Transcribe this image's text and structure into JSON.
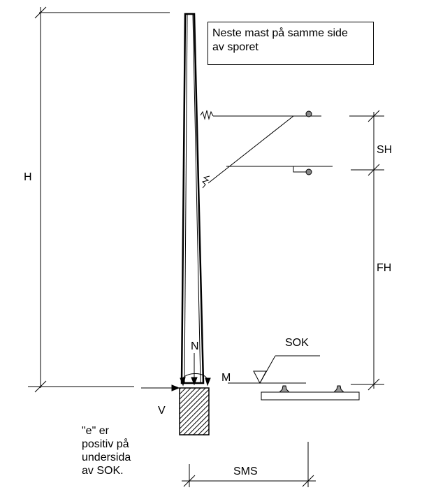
{
  "labels": {
    "H": "H",
    "SH": "SH",
    "FH": "FH",
    "SOK": "SOK",
    "N": "N",
    "M": "M",
    "V": "V",
    "SMS": "SMS"
  },
  "note_box": {
    "line1": "Neste mast på samme side",
    "line2": "av sporet"
  },
  "e_note": {
    "line1": "\"e\" er",
    "line2": "positiv på",
    "line3": "undersida",
    "line4": "av SOK."
  }
}
